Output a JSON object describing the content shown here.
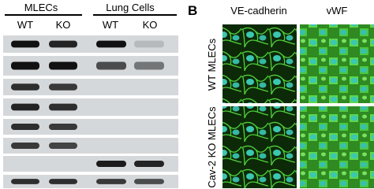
{
  "panel_a": {
    "groups": [
      {
        "label": "MLECs",
        "lanes": [
          "WT",
          "KO"
        ]
      },
      {
        "label": "Lung Cells",
        "lanes": [
          "WT",
          "KO"
        ]
      }
    ]
  },
  "panel_b": {
    "letter": "B",
    "columns": [
      "VE-cadherin",
      "vWF"
    ],
    "rows": [
      "WT MLECs",
      "Cav-2 KO MLECs"
    ]
  }
}
